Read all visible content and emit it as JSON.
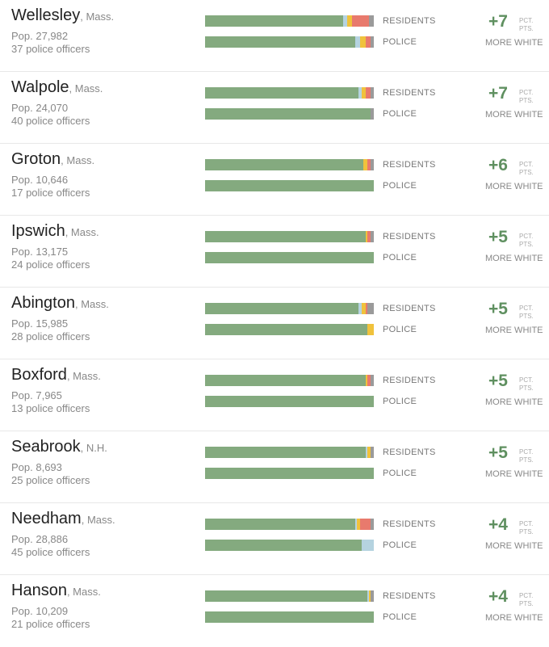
{
  "labels": {
    "residents": "RESIDENTS",
    "police": "POLICE",
    "unit_line1": "PCT.",
    "unit_line2": "PTS.",
    "more_white": "MORE WHITE"
  },
  "colors": {
    "white": "#84aa7f",
    "hispanic": "#f0c23c",
    "black": "#e87a6d",
    "asian": "#b5d3e0",
    "other": "#9a9a9a"
  },
  "chart_data": {
    "type": "bar",
    "segment_order": [
      "white",
      "asian",
      "hispanic",
      "black",
      "other"
    ],
    "rows": [
      {
        "name": "Wellesley",
        "state": ", Mass.",
        "pop": "Pop. 27,982",
        "officers": "37 police officers",
        "diff": "+7",
        "residents": {
          "white": 82,
          "asian": 2,
          "hispanic": 3,
          "black": 10,
          "other": 3
        },
        "police": {
          "white": 89,
          "asian": 3,
          "hispanic": 3,
          "black": 3,
          "other": 2
        }
      },
      {
        "name": "Walpole",
        "state": ", Mass.",
        "pop": "Pop. 24,070",
        "officers": "40 police officers",
        "diff": "+7",
        "residents": {
          "white": 91,
          "asian": 2,
          "hispanic": 2,
          "black": 3,
          "other": 2
        },
        "police": {
          "white": 98,
          "asian": 0,
          "hispanic": 0,
          "black": 0,
          "other": 2
        }
      },
      {
        "name": "Groton",
        "state": ", Mass.",
        "pop": "Pop. 10,646",
        "officers": "17 police officers",
        "diff": "+6",
        "residents": {
          "white": 94,
          "asian": 0,
          "hispanic": 2,
          "black": 2,
          "other": 2
        },
        "police": {
          "white": 100,
          "asian": 0,
          "hispanic": 0,
          "black": 0,
          "other": 0
        }
      },
      {
        "name": "Ipswich",
        "state": ", Mass.",
        "pop": "Pop. 13,175",
        "officers": "24 police officers",
        "diff": "+5",
        "residents": {
          "white": 95,
          "asian": 0,
          "hispanic": 1,
          "black": 2,
          "other": 2
        },
        "police": {
          "white": 100,
          "asian": 0,
          "hispanic": 0,
          "black": 0,
          "other": 0
        }
      },
      {
        "name": "Abington",
        "state": ", Mass.",
        "pop": "Pop. 15,985",
        "officers": "28 police officers",
        "diff": "+5",
        "residents": {
          "white": 91,
          "asian": 2,
          "hispanic": 2,
          "black": 1,
          "other": 4
        },
        "police": {
          "white": 96,
          "asian": 0,
          "hispanic": 4,
          "black": 0,
          "other": 0
        }
      },
      {
        "name": "Boxford",
        "state": ", Mass.",
        "pop": "Pop. 7,965",
        "officers": "13 police officers",
        "diff": "+5",
        "residents": {
          "white": 95,
          "asian": 0,
          "hispanic": 1,
          "black": 2,
          "other": 2
        },
        "police": {
          "white": 100,
          "asian": 0,
          "hispanic": 0,
          "black": 0,
          "other": 0
        }
      },
      {
        "name": "Seabrook",
        "state": ", N.H.",
        "pop": "Pop. 8,693",
        "officers": "25 police officers",
        "diff": "+5",
        "residents": {
          "white": 95,
          "asian": 1,
          "hispanic": 2,
          "black": 0,
          "other": 2
        },
        "police": {
          "white": 100,
          "asian": 0,
          "hispanic": 0,
          "black": 0,
          "other": 0
        }
      },
      {
        "name": "Needham",
        "state": ", Mass.",
        "pop": "Pop. 28,886",
        "officers": "45 police officers",
        "diff": "+4",
        "residents": {
          "white": 89,
          "asian": 1,
          "hispanic": 2,
          "black": 6,
          "other": 2
        },
        "police": {
          "white": 93,
          "asian": 7,
          "hispanic": 0,
          "black": 0,
          "other": 0
        }
      },
      {
        "name": "Hanson",
        "state": ", Mass.",
        "pop": "Pop. 10,209",
        "officers": "21 police officers",
        "diff": "+4",
        "residents": {
          "white": 96,
          "asian": 1,
          "hispanic": 1,
          "black": 0,
          "other": 2
        },
        "police": {
          "white": 100,
          "asian": 0,
          "hispanic": 0,
          "black": 0,
          "other": 0
        }
      }
    ]
  }
}
